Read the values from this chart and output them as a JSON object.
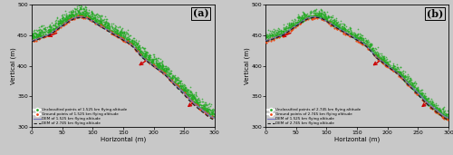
{
  "background_color": "#c8c8c8",
  "ylim": [
    300,
    500
  ],
  "xlim": [
    0,
    300
  ],
  "yticks": [
    300,
    350,
    400,
    450,
    500
  ],
  "xticks": [
    0,
    50,
    100,
    150,
    200,
    250,
    300
  ],
  "ylabel": "Vertical (m)",
  "xlabel": "Horizontal (m)",
  "panel_a_label": "(a)",
  "panel_b_label": "(b)",
  "legend_a": [
    "Unclassified points of 1.525 km flying altitude",
    "Ground points of 1.525 km flying altitude",
    "DEM of 1.525 km flying altitude",
    "DEM of 2.745 km flying altitude"
  ],
  "legend_b": [
    "Unclassified points of 2.745 km flying altitude",
    "Ground points of 2.745 km flying altitude",
    "DEM of 1.525 km flying altitude",
    "DEM of 2.745 km flying altitude"
  ],
  "green_color": "#22aa22",
  "orange_color": "#ee4411",
  "blue_color": "#7777bb",
  "black_color": "#222222",
  "arrow_color": "#cc0000",
  "terrain_x": [
    0,
    10,
    20,
    30,
    40,
    50,
    60,
    70,
    80,
    90,
    100,
    110,
    120,
    130,
    140,
    150,
    160,
    170,
    175,
    180,
    190,
    200,
    210,
    220,
    230,
    240,
    250,
    260,
    270,
    280,
    290,
    300
  ],
  "terrain_y": [
    441,
    444,
    448,
    452,
    459,
    466,
    473,
    478,
    480,
    478,
    473,
    467,
    461,
    455,
    449,
    443,
    437,
    428,
    422,
    416,
    408,
    400,
    393,
    385,
    375,
    365,
    356,
    345,
    336,
    328,
    320,
    315
  ],
  "terrain_y2": [
    440,
    443,
    447,
    451,
    458,
    465,
    472,
    477,
    479,
    478,
    473,
    466,
    460,
    454,
    448,
    442,
    436,
    427,
    421,
    415,
    407,
    399,
    392,
    384,
    373,
    363,
    353,
    342,
    333,
    325,
    317,
    312
  ]
}
